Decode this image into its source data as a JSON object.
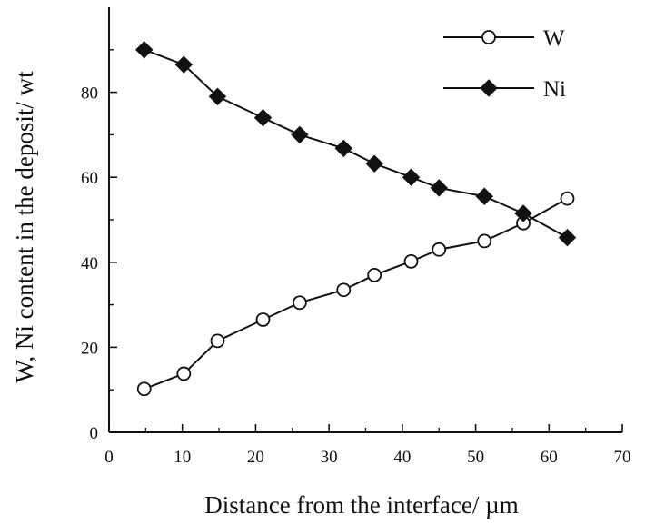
{
  "chart_data": {
    "type": "line",
    "title": "",
    "xlabel": "Distance from the interface/ µm",
    "ylabel": "W, Ni content in the deposit/ wt",
    "xlim": [
      0,
      70
    ],
    "ylim": [
      0,
      100
    ],
    "xticks": [
      0,
      10,
      20,
      30,
      40,
      50,
      60,
      70
    ],
    "yticks": [
      0,
      20,
      40,
      60,
      80
    ],
    "grid": false,
    "legend_position": "top-right",
    "series": [
      {
        "name": "W",
        "marker": "open-circle",
        "color": "#111111",
        "x": [
          4.8,
          10.2,
          14.8,
          21.0,
          26.0,
          32.0,
          36.2,
          41.2,
          45.0,
          51.2,
          56.5,
          62.5
        ],
        "y": [
          10.2,
          13.8,
          21.5,
          26.5,
          30.5,
          33.5,
          37.0,
          40.2,
          43.0,
          45.0,
          49.2,
          55.0
        ]
      },
      {
        "name": "Ni",
        "marker": "filled-diamond",
        "color": "#111111",
        "x": [
          4.8,
          10.2,
          14.8,
          21.0,
          26.0,
          32.0,
          36.2,
          41.2,
          45.0,
          51.2,
          56.5,
          62.5
        ],
        "y": [
          90.0,
          86.5,
          79.0,
          74.0,
          70.0,
          66.8,
          63.2,
          60.0,
          57.5,
          55.5,
          51.5,
          45.8
        ]
      }
    ]
  }
}
